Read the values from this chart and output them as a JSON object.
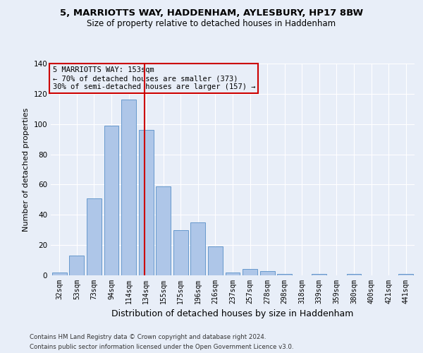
{
  "title1": "5, MARRIOTTS WAY, HADDENHAM, AYLESBURY, HP17 8BW",
  "title2": "Size of property relative to detached houses in Haddenham",
  "xlabel": "Distribution of detached houses by size in Haddenham",
  "ylabel": "Number of detached properties",
  "footnote1": "Contains HM Land Registry data © Crown copyright and database right 2024.",
  "footnote2": "Contains public sector information licensed under the Open Government Licence v3.0.",
  "categories": [
    "32sqm",
    "53sqm",
    "73sqm",
    "94sqm",
    "114sqm",
    "134sqm",
    "155sqm",
    "175sqm",
    "196sqm",
    "216sqm",
    "237sqm",
    "257sqm",
    "278sqm",
    "298sqm",
    "318sqm",
    "339sqm",
    "359sqm",
    "380sqm",
    "400sqm",
    "421sqm",
    "441sqm"
  ],
  "values": [
    2,
    13,
    51,
    99,
    116,
    96,
    59,
    30,
    35,
    19,
    2,
    4,
    3,
    1,
    0,
    1,
    0,
    1,
    0,
    0,
    1
  ],
  "bar_color": "#aec6e8",
  "bar_edge_color": "#6699cc",
  "vline_color": "#cc0000",
  "annotation_line1": "5 MARRIOTTS WAY: 153sqm",
  "annotation_line2": "← 70% of detached houses are smaller (373)",
  "annotation_line3": "30% of semi-detached houses are larger (157) →",
  "annotation_box_color": "#cc0000",
  "ylim": [
    0,
    140
  ],
  "yticks": [
    0,
    20,
    40,
    60,
    80,
    100,
    120,
    140
  ],
  "background_color": "#e8eef8",
  "grid_color": "#ffffff",
  "title1_fontsize": 9.5,
  "title2_fontsize": 8.5,
  "ylabel_fontsize": 8,
  "xlabel_fontsize": 9,
  "tick_fontsize": 7,
  "annot_fontsize": 7.5
}
